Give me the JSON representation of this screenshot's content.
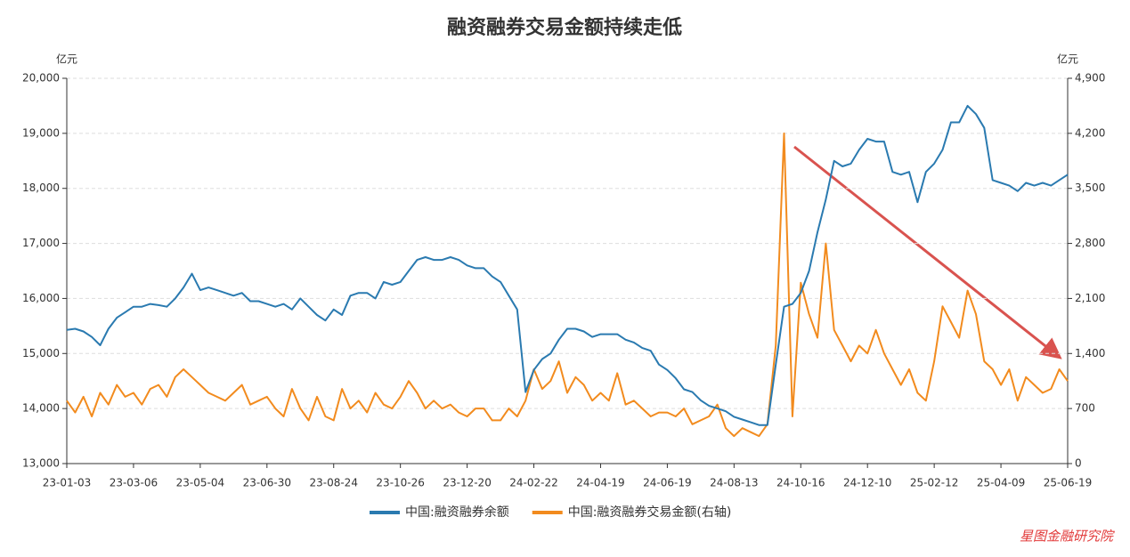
{
  "chart_data": {
    "type": "line",
    "title": "融资融券交易金额持续走低",
    "y_unit": "亿元",
    "y2_unit": "亿元",
    "source": "星图金融研究院",
    "categories": [
      "23-01-03",
      null,
      null,
      null,
      null,
      null,
      null,
      null,
      "23-03-06",
      null,
      null,
      null,
      null,
      null,
      null,
      null,
      "23-05-04",
      null,
      null,
      null,
      null,
      null,
      null,
      null,
      "23-06-30",
      null,
      null,
      null,
      null,
      null,
      null,
      null,
      "23-08-24",
      null,
      null,
      null,
      null,
      null,
      null,
      null,
      "23-10-26",
      null,
      null,
      null,
      null,
      null,
      null,
      null,
      "23-12-20",
      null,
      null,
      null,
      null,
      null,
      null,
      null,
      "24-02-22",
      null,
      null,
      null,
      null,
      null,
      null,
      null,
      "24-04-19",
      null,
      null,
      null,
      null,
      null,
      null,
      null,
      "24-06-19",
      null,
      null,
      null,
      null,
      null,
      null,
      null,
      "24-08-13",
      null,
      null,
      null,
      null,
      null,
      null,
      null,
      "24-10-16",
      null,
      null,
      null,
      null,
      null,
      null,
      null,
      "24-12-10",
      null,
      null,
      null,
      null,
      null,
      null,
      null,
      "25-02-12",
      null,
      null,
      null,
      null,
      null,
      null,
      null,
      "25-04-09",
      null,
      null,
      null,
      null,
      null,
      null,
      null,
      "25-06-19"
    ],
    "series": [
      {
        "name": "中国:融资融券余额",
        "color": "#2a7ab0",
        "axis": "y",
        "values": [
          15430,
          15450,
          15400,
          15300,
          15150,
          15450,
          15650,
          15750,
          15850,
          15850,
          15900,
          15880,
          15850,
          16000,
          16200,
          16450,
          16150,
          16200,
          16150,
          16100,
          16050,
          16100,
          15950,
          15950,
          15900,
          15850,
          15900,
          15800,
          16000,
          15850,
          15700,
          15600,
          15800,
          15700,
          16050,
          16100,
          16100,
          16000,
          16300,
          16250,
          16300,
          16500,
          16700,
          16750,
          16700,
          16700,
          16750,
          16700,
          16600,
          16550,
          16550,
          16400,
          16300,
          16050,
          15800,
          14300,
          14700,
          14900,
          15000,
          15250,
          15450,
          15450,
          15400,
          15300,
          15350,
          15350,
          15350,
          15250,
          15200,
          15100,
          15050,
          14800,
          14700,
          14550,
          14350,
          14300,
          14150,
          14050,
          14000,
          13950,
          13850,
          13800,
          13750,
          13700,
          13700,
          14800,
          15850,
          15900,
          16100,
          16500,
          17200,
          17800,
          18500,
          18400,
          18450,
          18700,
          18900,
          18850,
          18850,
          18300,
          18250,
          18300,
          17750,
          18300,
          18450,
          18700,
          19200,
          19200,
          19500,
          19350,
          19100,
          18150,
          18100,
          18050,
          17950,
          18100,
          18050,
          18100,
          18050,
          18150,
          18250
        ]
      },
      {
        "name": "中国:融资融券交易金额(右轴)",
        "color": "#f28b1e",
        "axis": "y2",
        "values": [
          800,
          650,
          850,
          600,
          900,
          750,
          1000,
          850,
          900,
          750,
          950,
          1000,
          850,
          1100,
          1200,
          1100,
          1000,
          900,
          850,
          800,
          900,
          1000,
          750,
          800,
          850,
          700,
          600,
          950,
          700,
          550,
          850,
          600,
          550,
          950,
          700,
          800,
          650,
          900,
          750,
          700,
          850,
          1050,
          900,
          700,
          800,
          700,
          750,
          650,
          600,
          700,
          700,
          550,
          550,
          700,
          600,
          800,
          1200,
          950,
          1050,
          1300,
          900,
          1100,
          1000,
          800,
          900,
          800,
          1150,
          750,
          800,
          700,
          600,
          650,
          650,
          600,
          700,
          500,
          550,
          600,
          750,
          450,
          350,
          450,
          400,
          350,
          500,
          1500,
          4200,
          600,
          2300,
          1900,
          1600,
          2800,
          1700,
          1500,
          1300,
          1500,
          1400,
          1700,
          1400,
          1200,
          1000,
          1200,
          900,
          800,
          1300,
          2000,
          1800,
          1600,
          2200,
          1900,
          1300,
          1200,
          1000,
          1200,
          800,
          1100,
          1000,
          900,
          950,
          1200,
          1050
        ]
      }
    ],
    "ylim": [
      13000,
      20000
    ],
    "yticks": [
      {
        "value": 13000,
        "label": "13,000"
      },
      {
        "value": 14000,
        "label": "14,000"
      },
      {
        "value": 15000,
        "label": "15,000"
      },
      {
        "value": 16000,
        "label": "16,000"
      },
      {
        "value": 17000,
        "label": "17,000"
      },
      {
        "value": 18000,
        "label": "18,000"
      },
      {
        "value": 19000,
        "label": "19,000"
      },
      {
        "value": 20000,
        "label": "20,000"
      }
    ],
    "y2lim": [
      0,
      4900
    ],
    "y2ticks": [
      0,
      700,
      {
        "value": 1400,
        "label": "1,400"
      },
      {
        "value": 2100,
        "label": "2,100"
      },
      {
        "value": 2800,
        "label": "2,800"
      },
      {
        "value": 3500,
        "label": "3,500"
      },
      {
        "value": 4200,
        "label": "4,200"
      },
      {
        "value": 4900,
        "label": "4,900"
      }
    ],
    "grid": true,
    "legend": "bottom"
  }
}
